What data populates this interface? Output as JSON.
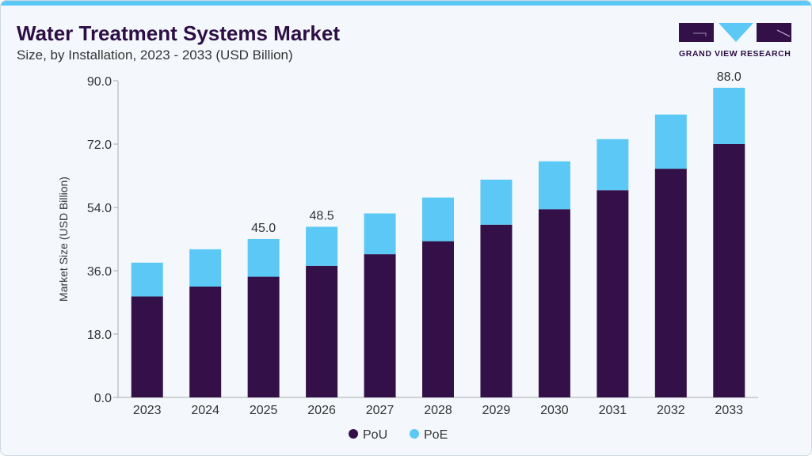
{
  "header": {
    "title": "Water Treatment Systems Market",
    "subtitle": "Size, by Installation, 2023 - 2033 (USD Billion)"
  },
  "logo": {
    "text": "GRAND VIEW RESEARCH"
  },
  "colors": {
    "PoU": "#341048",
    "PoE": "#5bc8f5",
    "accent": "#5bc8f5"
  },
  "chart_data": {
    "type": "bar",
    "stacked": true,
    "title": "Water Treatment Systems Market",
    "xlabel": "",
    "ylabel": "Market Size (USD Billion)",
    "ylim": [
      0,
      90
    ],
    "yticks": [
      "0.0",
      "18.0",
      "36.0",
      "54.0",
      "72.0",
      "90.0"
    ],
    "categories": [
      "2023",
      "2024",
      "2025",
      "2026",
      "2027",
      "2028",
      "2029",
      "2030",
      "2031",
      "2032",
      "2033"
    ],
    "series": [
      {
        "name": "PoU",
        "values": [
          28.7,
          31.5,
          34.3,
          37.4,
          40.7,
          44.4,
          49.1,
          53.5,
          58.9,
          65.0,
          72.0
        ]
      },
      {
        "name": "PoE",
        "values": [
          9.6,
          10.6,
          10.7,
          11.1,
          11.6,
          12.4,
          12.8,
          13.6,
          14.5,
          15.4,
          16.0
        ]
      }
    ],
    "data_labels": {
      "2025": "45.0",
      "2026": "48.5",
      "2033": "88.0"
    },
    "legend": "bottom-center"
  }
}
